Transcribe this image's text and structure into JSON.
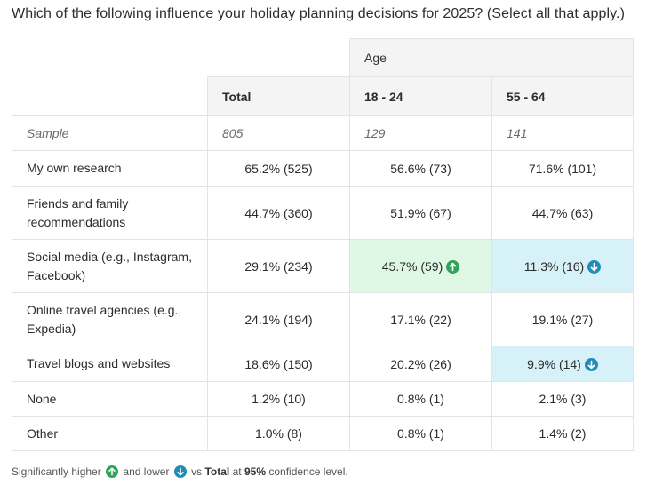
{
  "question": "Which of the following influence your holiday planning decisions for 2025? (Select all that apply.)",
  "group_header": "Age",
  "columns": [
    "Total",
    "18 - 24",
    "55 - 64"
  ],
  "sample": {
    "label": "Sample",
    "values": [
      "805",
      "129",
      "141"
    ]
  },
  "rows": [
    {
      "label": "My own research",
      "values": [
        "65.2% (525)",
        "56.6% (73)",
        "71.6% (101)"
      ],
      "sig": [
        "",
        "",
        ""
      ]
    },
    {
      "label": "Friends and family recommendations",
      "values": [
        "44.7% (360)",
        "51.9% (67)",
        "44.7% (63)"
      ],
      "sig": [
        "",
        "",
        ""
      ]
    },
    {
      "label": "Social media (e.g., Instagram, Facebook)",
      "values": [
        "29.1% (234)",
        "45.7% (59)",
        "11.3% (16)"
      ],
      "sig": [
        "",
        "higher",
        "lower"
      ]
    },
    {
      "label": "Online travel agencies (e.g., Expedia)",
      "values": [
        "24.1% (194)",
        "17.1% (22)",
        "19.1% (27)"
      ],
      "sig": [
        "",
        "",
        ""
      ]
    },
    {
      "label": "Travel blogs and websites",
      "values": [
        "18.6% (150)",
        "20.2% (26)",
        "9.9% (14)"
      ],
      "sig": [
        "",
        "",
        "lower"
      ]
    },
    {
      "label": "None",
      "values": [
        "1.2% (10)",
        "0.8% (1)",
        "2.1% (3)"
      ],
      "sig": [
        "",
        "",
        ""
      ]
    },
    {
      "label": "Other",
      "values": [
        "1.0% (8)",
        "0.8% (1)",
        "1.4% (2)"
      ],
      "sig": [
        "",
        "",
        ""
      ]
    }
  ],
  "legend": {
    "prefix": "Significantly higher",
    "and_lower": "and lower",
    "vs": "vs",
    "total": "Total",
    "at": "at",
    "level": "95%",
    "suffix": "confidence level."
  },
  "colors": {
    "higher_bg": "#dff8e6",
    "lower_bg": "#d6f1f8",
    "higher_icon": "#2fa45a",
    "lower_icon": "#1f8db7"
  },
  "icons": {
    "higher": "arrow-up-circle-icon",
    "lower": "arrow-down-circle-icon"
  }
}
